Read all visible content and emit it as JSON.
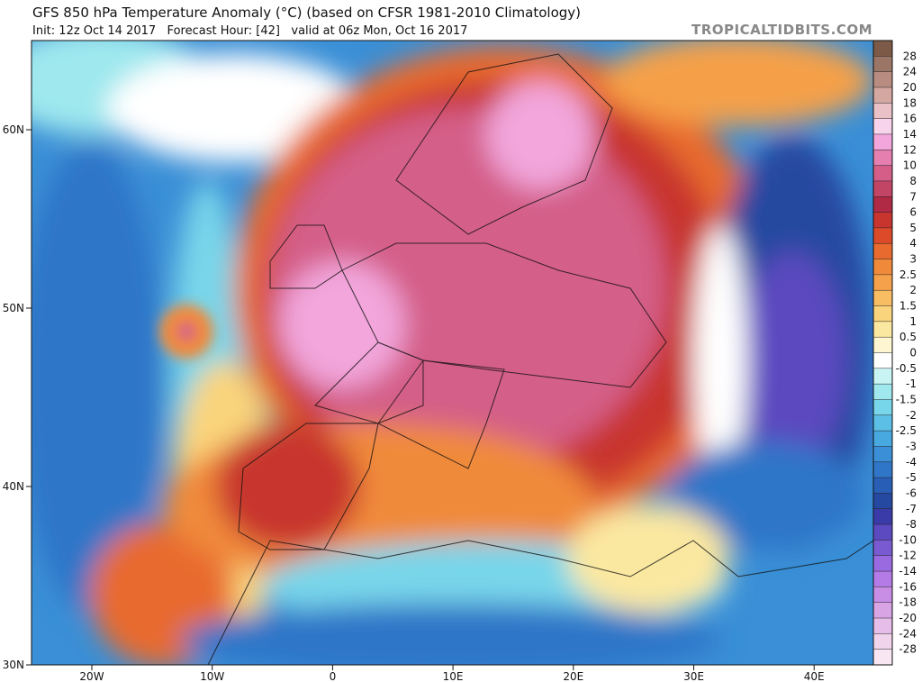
{
  "header": {
    "title": "GFS 850 hPa Temperature Anomaly (°C) (based on CFSR 1981-2010 Climatology)",
    "subtitle": "Init: 12z Oct 14 2017   Forecast Hour: [42]   valid at 06z Mon, Oct 16 2017",
    "brand": "TROPICALTIDBITS.COM"
  },
  "map": {
    "lat_labels": [
      "60N",
      "50N",
      "40N",
      "30N"
    ],
    "lon_labels": [
      "20W",
      "10W",
      "0",
      "10E",
      "20E",
      "30E",
      "40E"
    ]
  },
  "colorbar": {
    "labels": [
      "28",
      "24",
      "20",
      "18",
      "16",
      "14",
      "12",
      "10",
      "8",
      "7",
      "6",
      "5",
      "4",
      "3",
      "2.5",
      "2",
      "1.5",
      "1",
      "0.5",
      "0",
      "-0.5",
      "-1",
      "-1.5",
      "-2",
      "-2.5",
      "-3",
      "-4",
      "-5",
      "-6",
      "-7",
      "-8",
      "-10",
      "-12",
      "-14",
      "-16",
      "-18",
      "-20",
      "-24",
      "-28"
    ],
    "colors": [
      "#7d5a48",
      "#9b7565",
      "#b88c80",
      "#d4a7a0",
      "#e9c1c6",
      "#f7d4ec",
      "#f2a6dc",
      "#e47fb0",
      "#d45e88",
      "#c24565",
      "#b02a45",
      "#c8352e",
      "#dc4a2a",
      "#e86a2e",
      "#f08a3a",
      "#f5a04a",
      "#f8bc62",
      "#fad47c",
      "#fbe8a0",
      "#fdf6d0",
      "#ffffff",
      "#c8f4f4",
      "#9ee8ee",
      "#78d6ea",
      "#5cc0e6",
      "#48a8e0",
      "#3a8fd6",
      "#2f76c8",
      "#285eb6",
      "#2548a0",
      "#3a3aa8",
      "#5c4ac0",
      "#7a5ad0",
      "#9a6ae0",
      "#b47ae6",
      "#c88ee6",
      "#d8a4e4",
      "#e6bce8",
      "#f0d4ec",
      "#f8e6f2"
    ]
  }
}
